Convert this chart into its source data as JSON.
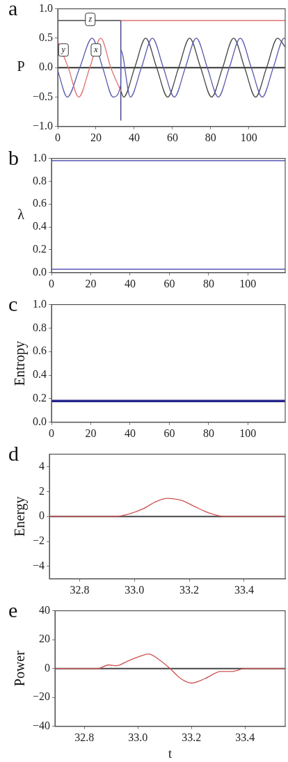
{
  "chart_data": [
    {
      "type": "line",
      "title": "a",
      "ylabel": "P",
      "xlim": [
        0,
        119
      ],
      "xticks": [
        0,
        20,
        40,
        60,
        80,
        100
      ],
      "ylim": [
        -1,
        1
      ],
      "yticks": [
        {
          "value": -1,
          "label": "−1.0"
        },
        {
          "value": -0.5,
          "label": "−0.5"
        },
        {
          "value": 0,
          "label": "0.0"
        },
        {
          "value": 0.5,
          "label": "0.5"
        },
        {
          "value": 1,
          "label": "1.0"
        }
      ],
      "series": [
        {
          "color": "#e07070",
          "x": [
            0,
            5.5,
            11,
            16.75,
            22.5,
            27.75,
            33
          ],
          "values": [
            0.45,
            0,
            -0.5,
            0,
            0.5,
            0,
            -0.4
          ]
        },
        {
          "color": "#5a5ab0",
          "x": [
            0,
            5,
            11.5,
            18,
            23.5,
            29,
            32.9,
            33,
            38,
            43.75,
            49.5,
            55.25,
            61,
            66.75,
            72.5,
            78.25,
            84,
            89.75,
            95.5,
            101.25,
            107,
            112.75,
            118.5,
            119
          ],
          "values": [
            -0.05,
            -0.5,
            0,
            0.5,
            0,
            -0.5,
            -0.3,
            0.3,
            -0.5,
            0,
            0.5,
            0,
            -0.5,
            0,
            0.5,
            0,
            -0.5,
            0,
            0.5,
            0,
            -0.5,
            0,
            0.5,
            0.49
          ]
        },
        {
          "color": "#444444",
          "x": [
            33,
            34.5,
            40.25,
            46,
            51.75,
            57.5,
            63.25,
            69,
            74.75,
            80.5,
            86.25,
            92,
            97.75,
            103.5,
            109.25,
            115,
            119
          ],
          "values": [
            -0.4,
            -0.5,
            0,
            0.5,
            0,
            -0.5,
            0,
            0.5,
            0,
            -0.5,
            0,
            0.5,
            0,
            -0.5,
            0,
            0.5,
            0.35
          ]
        },
        {
          "color": "#444444",
          "x": [
            0,
            33
          ],
          "values": [
            0.8,
            0.8
          ]
        },
        {
          "color": "#e07070",
          "x": [
            33,
            119
          ],
          "values": [
            0.8,
            0.8
          ]
        },
        {
          "color": "#333380",
          "x": [
            33,
            33
          ],
          "values": [
            -0.9,
            0.8
          ]
        }
      ],
      "ref_lines": [
        {
          "axis": "y",
          "value": 0,
          "color": "#333333"
        }
      ],
      "annotations": [
        {
          "text": "y",
          "x": 3,
          "y": 0.3
        },
        {
          "text": "z",
          "x": 17,
          "y": 0.82
        },
        {
          "text": "x",
          "x": 20,
          "y": 0.3
        }
      ]
    },
    {
      "type": "line",
      "title": "b",
      "ylabel": "λ",
      "xlim": [
        0,
        119
      ],
      "xticks": [
        0,
        20,
        40,
        60,
        80,
        100
      ],
      "ylim": [
        0,
        1
      ],
      "yticks": [
        {
          "value": 0,
          "label": "0.0"
        },
        0.2,
        0.4,
        0.6,
        0.8,
        {
          "value": 1,
          "label": "1.0"
        }
      ],
      "series": [
        {
          "color": "#3535a5",
          "x": [
            0,
            119
          ],
          "values": [
            0.98,
            0.98
          ]
        },
        {
          "color": "#3535a5",
          "x": [
            0,
            119
          ],
          "values": [
            0.03,
            0.03
          ]
        }
      ]
    },
    {
      "type": "line",
      "title": "c",
      "ylabel": "Entropy",
      "xlim": [
        0,
        119
      ],
      "xticks": [
        0,
        20,
        40,
        60,
        80,
        100
      ],
      "ylim": [
        0,
        1
      ],
      "yticks": [
        {
          "value": 0,
          "label": "0.0"
        },
        0.2,
        0.4,
        0.6,
        0.8,
        {
          "value": 1,
          "label": "1.0"
        }
      ],
      "series": [
        {
          "color": "#25258a",
          "x": [
            0,
            119
          ],
          "values": [
            0.18,
            0.18
          ]
        }
      ]
    },
    {
      "type": "line",
      "title": "d",
      "ylabel": "Energy",
      "xlim": [
        32.69,
        33.55
      ],
      "xticks": [
        32.8,
        {
          "value": 33,
          "label": "33.0"
        },
        33.2,
        33.4
      ],
      "ylim": [
        -5,
        5
      ],
      "yticks": [
        {
          "value": -4,
          "label": "−4"
        },
        {
          "value": -2,
          "label": "−2"
        },
        0,
        2,
        4
      ],
      "series": [
        {
          "color": "#d05050",
          "x": [
            32.69,
            32.93,
            32.98,
            33.03,
            33.08,
            33.12,
            33.17,
            33.22,
            33.27,
            33.33,
            33.55
          ],
          "values": [
            0,
            0,
            0.2,
            0.6,
            1.2,
            1.45,
            1.3,
            0.8,
            0.3,
            0,
            0
          ]
        }
      ],
      "ref_lines": [
        {
          "axis": "y",
          "value": 0,
          "color": "#444444"
        }
      ]
    },
    {
      "type": "line",
      "title": "e",
      "ylabel": "Power",
      "xlabel": "t",
      "xlim": [
        32.69,
        33.55
      ],
      "xticks": [
        32.8,
        {
          "value": 33,
          "label": "33.0"
        },
        33.2,
        33.4
      ],
      "ylim": [
        -40,
        40
      ],
      "yticks": [
        {
          "value": -40,
          "label": "−40"
        },
        {
          "value": -20,
          "label": "−20"
        },
        0,
        20,
        40
      ],
      "series": [
        {
          "color": "#d05050",
          "x": [
            32.69,
            32.85,
            32.89,
            32.92,
            32.96,
            33.0,
            33.04,
            33.08,
            33.12,
            33.16,
            33.2,
            33.25,
            33.31,
            33.35,
            33.4,
            33.55
          ],
          "values": [
            0,
            0,
            2.5,
            2,
            5,
            8,
            10,
            6,
            0,
            -7,
            -10,
            -7,
            -2,
            -2,
            0,
            0
          ]
        }
      ],
      "ref_lines": [
        {
          "axis": "y",
          "value": 0,
          "color": "#444444"
        }
      ]
    }
  ]
}
